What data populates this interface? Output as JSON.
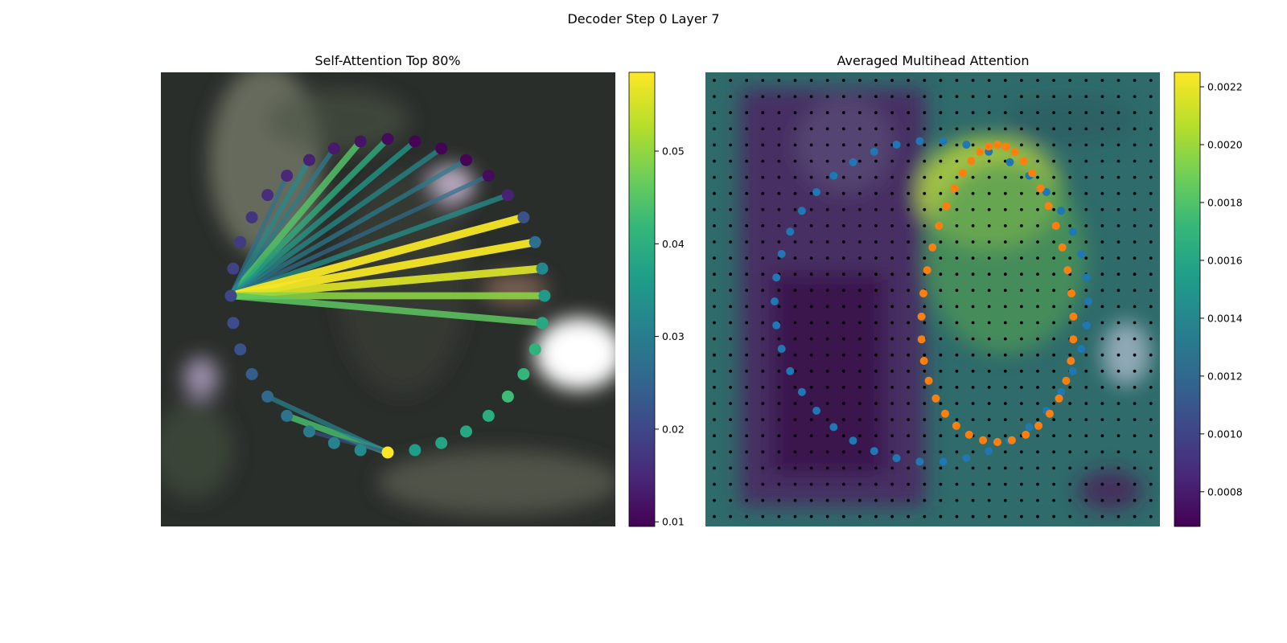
{
  "figure": {
    "title": "Decoder Step 0 Layer 7"
  },
  "colors": {
    "background_left": "#2b2f2c",
    "background_right_low": "#440154",
    "dots_grid": "#000000",
    "points_blue": "#1f77b4",
    "points_orange": "#ff7f0e",
    "viridis": [
      "#440154",
      "#482878",
      "#3e4989",
      "#31688e",
      "#26828e",
      "#1f9e89",
      "#35b779",
      "#6ece58",
      "#b5de2b",
      "#fde725"
    ]
  },
  "chart_data": [
    {
      "type": "network",
      "title": "Self-Attention Top 80%",
      "colorbar": {
        "range": [
          0.0095,
          0.0585
        ],
        "ticks": [
          "0.01",
          "0.02",
          "0.03",
          "0.04",
          "0.05"
        ],
        "tick_values": [
          0.01,
          0.02,
          0.03,
          0.04,
          0.05
        ]
      },
      "nodes_note": "circle of 36 points; value = node color weight",
      "node_values": [
        0.0585,
        0.033,
        0.031,
        0.03,
        0.028,
        0.026,
        0.024,
        0.022,
        0.021,
        0.02,
        0.019,
        0.018,
        0.017,
        0.016,
        0.015,
        0.014,
        0.013,
        0.012,
        0.011,
        0.01,
        0.01,
        0.01,
        0.011,
        0.014,
        0.022,
        0.027,
        0.032,
        0.036,
        0.039,
        0.041,
        0.042,
        0.043,
        0.04,
        0.039,
        0.038,
        0.037
      ],
      "edges": [
        {
          "from": 9,
          "to": 15,
          "weight": 0.033
        },
        {
          "from": 9,
          "to": 16,
          "weight": 0.03
        },
        {
          "from": 9,
          "to": 17,
          "weight": 0.045
        },
        {
          "from": 9,
          "to": 18,
          "weight": 0.04
        },
        {
          "from": 9,
          "to": 19,
          "weight": 0.036
        },
        {
          "from": 9,
          "to": 20,
          "weight": 0.033
        },
        {
          "from": 9,
          "to": 21,
          "weight": 0.03
        },
        {
          "from": 9,
          "to": 22,
          "weight": 0.027
        },
        {
          "from": 9,
          "to": 23,
          "weight": 0.034
        },
        {
          "from": 9,
          "to": 24,
          "weight": 0.058
        },
        {
          "from": 9,
          "to": 25,
          "weight": 0.058
        },
        {
          "from": 9,
          "to": 26,
          "weight": 0.056
        },
        {
          "from": 9,
          "to": 27,
          "weight": 0.05
        },
        {
          "from": 9,
          "to": 28,
          "weight": 0.046
        },
        {
          "from": 9,
          "to": 14,
          "weight": 0.028
        },
        {
          "from": 0,
          "to": 4,
          "weight": 0.044
        },
        {
          "from": 0,
          "to": 5,
          "weight": 0.031
        },
        {
          "from": 0,
          "to": 3,
          "weight": 0.022
        }
      ]
    },
    {
      "type": "heatmap",
      "title": "Averaged Multihead Attention",
      "colorbar": {
        "range": [
          0.00068,
          0.00225
        ],
        "ticks": [
          "0.0008",
          "0.0010",
          "0.0012",
          "0.0014",
          "0.0016",
          "0.0018",
          "0.0020",
          "0.0022"
        ],
        "tick_values": [
          0.0008,
          0.001,
          0.0012,
          0.0014,
          0.0016,
          0.0018,
          0.002,
          0.0022
        ]
      },
      "grid": "28x28 black sample points overlay",
      "series": [
        {
          "label": "blue outer contour points",
          "color": "#1f77b4"
        },
        {
          "label": "orange inner contour points",
          "color": "#ff7f0e"
        }
      ]
    }
  ]
}
